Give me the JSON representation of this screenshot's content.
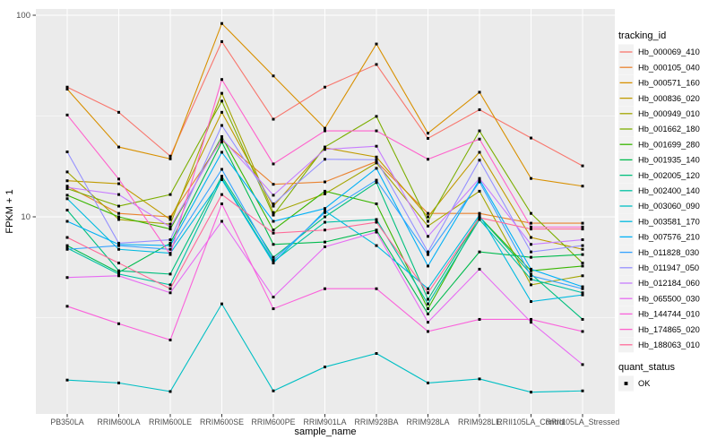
{
  "figure": {
    "bg": "#FFFFFF",
    "panel_bg": "#EBEBEB",
    "grid_color": "#FFFFFF",
    "tick_label_color": "#4D4D4D",
    "title_color": "#000000",
    "point_color": "#000000"
  },
  "legend": {
    "tracking_title": "tracking_id",
    "quant_title": "quant_status",
    "quant_ok_label": "OK"
  },
  "chart_data": {
    "type": "line",
    "xlabel": "sample_name",
    "ylabel": "FPKM + 1",
    "y_scale": "log10",
    "y_major_ticks": [
      {
        "label": "100",
        "value": 100
      },
      {
        "label": "10",
        "value": 10
      }
    ],
    "y_minor_ticks": [
      31.62,
      3.162
    ],
    "ylim": [
      1.05,
      107
    ],
    "grid": true,
    "legend_position": "right",
    "categories": [
      "PB350LA",
      "RRIM600LA",
      "RRIM600LE",
      "RRIM600SE",
      "RRIM600PE",
      "RRIM901LA",
      "RRIM928BA",
      "RRIM928LA",
      "RRIM928LE",
      "RRII105LA_Control",
      "RRII105LA_Stressed"
    ],
    "series": [
      {
        "name": "Hb_000069_410",
        "color": "#F8766D",
        "values": [
          44,
          33,
          20,
          74,
          30.5,
          44,
          57,
          24.5,
          34,
          24.6,
          17.9
        ]
      },
      {
        "name": "Hb_000105_040",
        "color": "#EA8331",
        "values": [
          14.2,
          10.4,
          10.0,
          24,
          14.5,
          14.9,
          18.8,
          10.4,
          10.4,
          9.3,
          9.3
        ]
      },
      {
        "name": "Hb_000571_160",
        "color": "#D89000",
        "values": [
          43,
          22.2,
          19.4,
          91,
          50,
          27.5,
          72,
          26,
          41.5,
          15.5,
          14.2
        ]
      },
      {
        "name": "Hb_000836_020",
        "color": "#C09B00",
        "values": [
          15.1,
          14.6,
          9.7,
          33,
          11.3,
          22,
          19.8,
          10,
          20.9,
          7.9,
          6.9
        ]
      },
      {
        "name": "Hb_000949_010",
        "color": "#A3A500",
        "values": [
          16.7,
          9.7,
          9.2,
          41,
          10.5,
          13,
          18.5,
          9,
          13.4,
          4.6,
          5.1
        ]
      },
      {
        "name": "Hb_001662_180",
        "color": "#7CAE00",
        "values": [
          13.8,
          11.3,
          12.9,
          37.5,
          10.2,
          22.2,
          31.5,
          9.5,
          26.7,
          10.4,
          5.9
        ]
      },
      {
        "name": "Hb_001699_280",
        "color": "#39B600",
        "values": [
          12.8,
          10.0,
          8.7,
          25,
          8.6,
          13.4,
          11.6,
          3.5,
          10,
          5.4,
          5.7
        ]
      },
      {
        "name": "Hb_001935_140",
        "color": "#00BB4E",
        "values": [
          7.2,
          5.3,
          7.4,
          23.5,
          7.3,
          7.5,
          8.6,
          3.3,
          6.7,
          6.3,
          6.5
        ]
      },
      {
        "name": "Hb_002005_120",
        "color": "#00BF7D",
        "values": [
          10.8,
          5.4,
          5.2,
          15.9,
          6.3,
          10,
          14.8,
          3.9,
          10,
          5.2,
          3.1
        ]
      },
      {
        "name": "Hb_002400_140",
        "color": "#00C1A3",
        "values": [
          7.0,
          5.2,
          4.6,
          15.5,
          6.0,
          9.4,
          9.7,
          3.7,
          9.7,
          4.9,
          4.2
        ]
      },
      {
        "name": "Hb_003060_090",
        "color": "#00BFC4",
        "values": [
          1.55,
          1.5,
          1.36,
          3.7,
          1.37,
          1.8,
          2.1,
          1.5,
          1.57,
          1.35,
          1.37
        ]
      },
      {
        "name": "Hb_003581_170",
        "color": "#00BAE0",
        "values": [
          12.3,
          6.9,
          6.6,
          15.3,
          5.9,
          10.7,
          7.2,
          4.4,
          10.2,
          3.8,
          4.1
        ]
      },
      {
        "name": "Hb_007576_210",
        "color": "#00B0F6",
        "values": [
          9.5,
          7.3,
          7.2,
          20.9,
          9.5,
          11.0,
          17.4,
          5.7,
          15.3,
          5.5,
          4.5
        ]
      },
      {
        "name": "Hb_011828_030",
        "color": "#35A2FF",
        "values": [
          6.9,
          7.2,
          6.9,
          17.2,
          6.1,
          10.5,
          15.2,
          6.5,
          14.9,
          5.1,
          4.4
        ]
      },
      {
        "name": "Hb_011947_050",
        "color": "#9590FF",
        "values": [
          21,
          7.4,
          7.7,
          28.4,
          11.6,
          19.3,
          19.2,
          6.7,
          19.1,
          6.7,
          7.2
        ]
      },
      {
        "name": "Hb_012184_060",
        "color": "#C77CFF",
        "values": [
          14,
          12.9,
          8.9,
          24.5,
          12.8,
          21.6,
          22.4,
          8.0,
          15.5,
          7.3,
          7.7
        ]
      },
      {
        "name": "Hb_065500_030",
        "color": "#E76BF3",
        "values": [
          5.0,
          5.1,
          4.2,
          9.5,
          4.0,
          7.1,
          8.4,
          3.0,
          5.5,
          3.0,
          1.85
        ]
      },
      {
        "name": "Hb_144744_010",
        "color": "#FA62DB",
        "values": [
          3.6,
          2.95,
          2.45,
          11.6,
          3.5,
          4.4,
          4.4,
          2.7,
          3.1,
          3.1,
          2.7
        ]
      },
      {
        "name": "Hb_174865_020",
        "color": "#FF61CC",
        "values": [
          32,
          15.4,
          6.5,
          48,
          18.3,
          26.7,
          26.7,
          19.3,
          24.3,
          8.9,
          8.9
        ]
      },
      {
        "name": "Hb_188063_010",
        "color": "#FF6A98",
        "values": [
          7.9,
          5.9,
          4.4,
          12.9,
          8.3,
          8.6,
          9.4,
          4.2,
          9.9,
          8.7,
          8.7
        ]
      }
    ]
  }
}
